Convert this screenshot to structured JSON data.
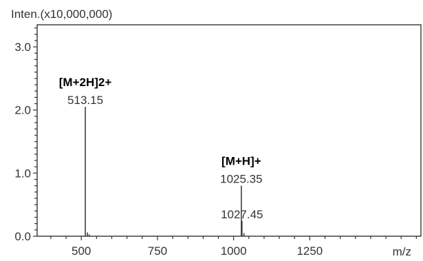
{
  "chart_data": {
    "type": "bar",
    "subtype": "mass-spectrum-stick",
    "ylabel": "Inten.(x10,000,000)",
    "xlabel": "m/z",
    "xlim": [
      355,
      1615
    ],
    "ylim": [
      0,
      3.35
    ],
    "x_ticks": [
      500,
      750,
      1000,
      1250
    ],
    "x_tick_labels": [
      "500",
      "750",
      "1000",
      "1250"
    ],
    "y_ticks": [
      0,
      1,
      2,
      3
    ],
    "y_tick_labels": [
      "0.0",
      "1.0",
      "2.0",
      "3.0"
    ],
    "grid": false,
    "peaks": [
      {
        "mz": 513.15,
        "intensity": 2.05,
        "label": "513.15",
        "ion": "[M+2H]2+"
      },
      {
        "mz": 520,
        "intensity": 0.06
      },
      {
        "mz": 526,
        "intensity": 0.03
      },
      {
        "mz": 1025.35,
        "intensity": 0.8,
        "label": "1025.35",
        "ion": "[M+H]+"
      },
      {
        "mz": 1027.45,
        "intensity": 0.24,
        "label": "1027.45"
      },
      {
        "mz": 1034,
        "intensity": 0.05
      }
    ],
    "colors": {
      "axis": "#333333",
      "peaks": "#333333",
      "text": "#333333",
      "ion": "#000000"
    }
  }
}
